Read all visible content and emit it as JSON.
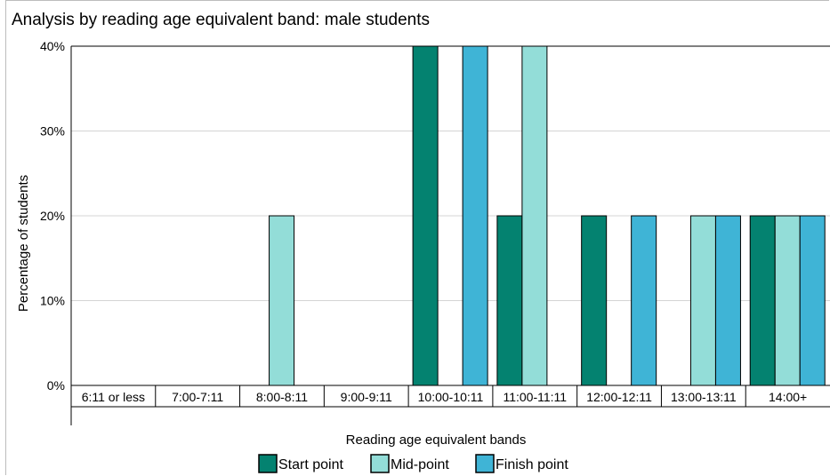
{
  "chart_data": {
    "type": "bar",
    "title": "Analysis by reading age equivalent band: male students",
    "xlabel": "Reading age equivalent bands",
    "ylabel": "Percentage of students",
    "ylim": [
      0,
      40
    ],
    "yticks": [
      "0%",
      "10%",
      "20%",
      "30%",
      "40%"
    ],
    "grid": true,
    "legend_position": "bottom",
    "categories": [
      "6:11 or less",
      "7:00-7:11",
      "8:00-8:11",
      "9:00-9:11",
      "10:00-10:11",
      "11:00-11:11",
      "12:00-12:11",
      "13:00-13:11",
      "14:00+"
    ],
    "series": [
      {
        "name": "Start point",
        "color": "#048270",
        "values": [
          0,
          0,
          0,
          0,
          40,
          20,
          20,
          0,
          20
        ]
      },
      {
        "name": "Mid-point",
        "color": "#93ddd8",
        "values": [
          0,
          0,
          20,
          0,
          0,
          40,
          0,
          20,
          20
        ]
      },
      {
        "name": "Finish point",
        "color": "#3fb4d6",
        "values": [
          0,
          0,
          0,
          0,
          40,
          0,
          20,
          20,
          20
        ]
      }
    ]
  }
}
